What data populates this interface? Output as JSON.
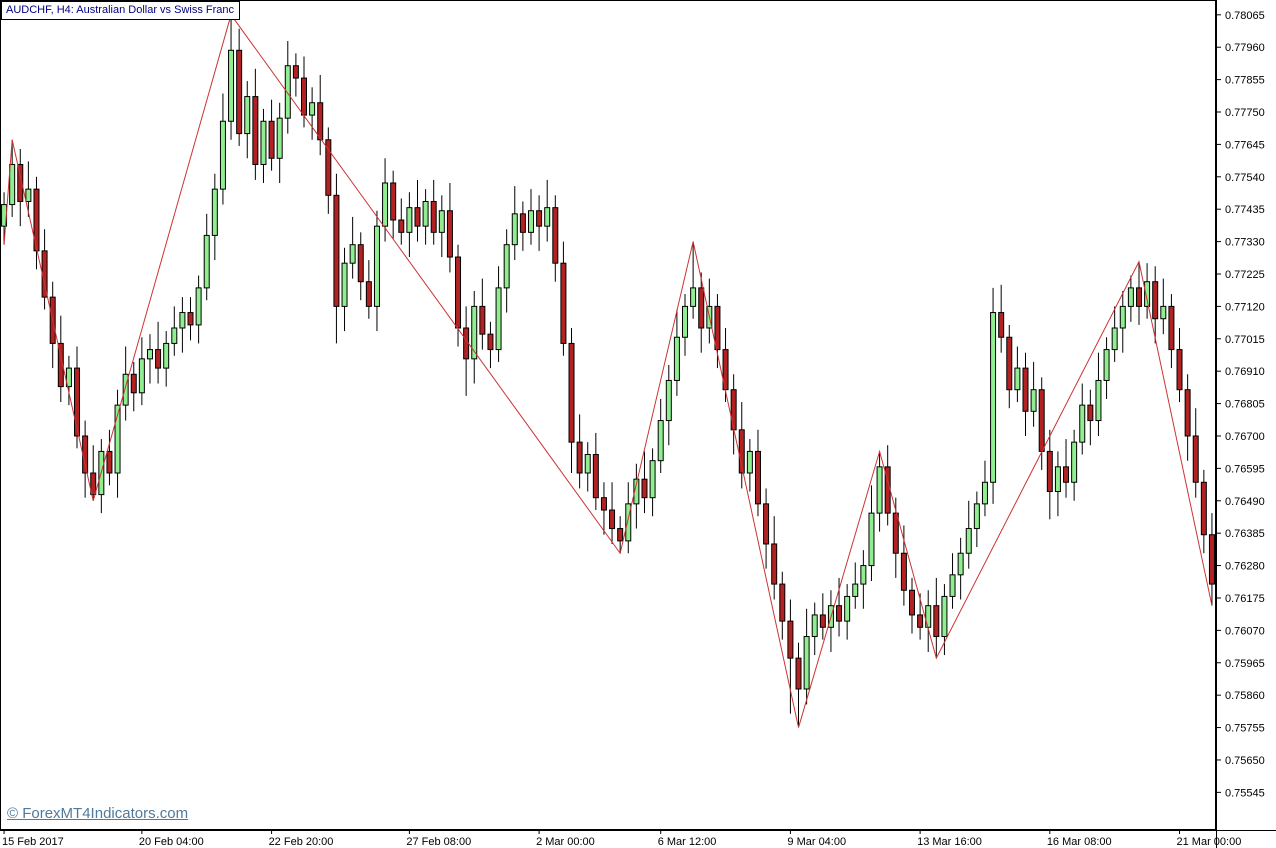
{
  "header": {
    "title": "AUDCHF, H4:  Australian Dollar vs Swiss Franc"
  },
  "watermark": "© ForexMT4Indicators.com",
  "colors": {
    "background": "#ffffff",
    "title_text": "#000080",
    "watermark_text": "#4f7a9b",
    "axis_text": "#000000",
    "axis_line": "#000000",
    "up_fill": "#90EE90",
    "down_fill": "#B22222",
    "candle_border": "#000000",
    "wick": "#000000",
    "zigzag": "#CC3333"
  },
  "chart_data": {
    "type": "candlestick",
    "symbol": "AUDCHF",
    "timeframe": "H4",
    "title": "AUDCHF, H4: Australian Dollar vs Swiss Franc",
    "indicator": "ZigZag",
    "grid": false,
    "legend": null,
    "price_range": [
      0.75423,
      0.78113
    ],
    "y_axis_labels": [
      0.78065,
      0.7796,
      0.77855,
      0.7775,
      0.77645,
      0.7754,
      0.77435,
      0.7733,
      0.77225,
      0.7712,
      0.77015,
      0.7691,
      0.76805,
      0.767,
      0.76595,
      0.7649,
      0.76385,
      0.7628,
      0.76175,
      0.7607,
      0.75965,
      0.7586,
      0.75755,
      0.7565,
      0.75545
    ],
    "x_axis_labels": [
      {
        "label": "15 Feb 2017",
        "index": 0
      },
      {
        "label": "20 Feb 04:00",
        "index": 17
      },
      {
        "label": "22 Feb 20:00",
        "index": 33
      },
      {
        "label": "27 Feb 08:00",
        "index": 50
      },
      {
        "label": "2 Mar 00:00",
        "index": 66
      },
      {
        "label": "6 Mar 12:00",
        "index": 81
      },
      {
        "label": "9 Mar 04:00",
        "index": 97
      },
      {
        "label": "13 Mar 16:00",
        "index": 113
      },
      {
        "label": "16 Mar 08:00",
        "index": 129
      },
      {
        "label": "21 Mar 00:00",
        "index": 145
      }
    ],
    "zigzag_points": [
      [
        0,
        0.7732
      ],
      [
        1,
        0.7766
      ],
      [
        11,
        0.7649
      ],
      [
        28,
        0.78065
      ],
      [
        76,
        0.7632
      ],
      [
        85,
        0.7733
      ],
      [
        98,
        0.75755
      ],
      [
        108,
        0.7665
      ],
      [
        115,
        0.7598
      ],
      [
        140,
        0.77265
      ],
      [
        149,
        0.7615
      ]
    ],
    "candles": [
      [
        0.7738,
        0.7749,
        0.7732,
        0.7745
      ],
      [
        0.7745,
        0.7766,
        0.7741,
        0.7758
      ],
      [
        0.7758,
        0.7763,
        0.7738,
        0.7746
      ],
      [
        0.7746,
        0.7759,
        0.7741,
        0.775
      ],
      [
        0.775,
        0.7754,
        0.7724,
        0.773
      ],
      [
        0.773,
        0.7737,
        0.7711,
        0.7715
      ],
      [
        0.7715,
        0.772,
        0.7692,
        0.77
      ],
      [
        0.77,
        0.7709,
        0.7681,
        0.7686
      ],
      [
        0.7686,
        0.7696,
        0.768,
        0.7692
      ],
      [
        0.7692,
        0.7699,
        0.7666,
        0.767
      ],
      [
        0.767,
        0.7675,
        0.765,
        0.7658
      ],
      [
        0.7658,
        0.7667,
        0.7649,
        0.7651
      ],
      [
        0.7651,
        0.7669,
        0.7645,
        0.7665
      ],
      [
        0.7665,
        0.7672,
        0.7654,
        0.7658
      ],
      [
        0.7658,
        0.7685,
        0.765,
        0.768
      ],
      [
        0.768,
        0.7699,
        0.7675,
        0.769
      ],
      [
        0.769,
        0.7694,
        0.7678,
        0.7684
      ],
      [
        0.7684,
        0.7702,
        0.768,
        0.7695
      ],
      [
        0.7695,
        0.7703,
        0.7687,
        0.7698
      ],
      [
        0.7698,
        0.7707,
        0.7687,
        0.7692
      ],
      [
        0.7692,
        0.7704,
        0.7686,
        0.77
      ],
      [
        0.77,
        0.7712,
        0.7696,
        0.7705
      ],
      [
        0.7705,
        0.7715,
        0.7697,
        0.771
      ],
      [
        0.771,
        0.7715,
        0.7701,
        0.7706
      ],
      [
        0.7706,
        0.7722,
        0.77,
        0.7718
      ],
      [
        0.7718,
        0.7742,
        0.7714,
        0.7735
      ],
      [
        0.7735,
        0.7755,
        0.7727,
        0.775
      ],
      [
        0.775,
        0.7781,
        0.7745,
        0.7772
      ],
      [
        0.7772,
        0.78065,
        0.7766,
        0.7795
      ],
      [
        0.7795,
        0.7802,
        0.7764,
        0.7768
      ],
      [
        0.7768,
        0.7785,
        0.776,
        0.778
      ],
      [
        0.778,
        0.7789,
        0.7753,
        0.7758
      ],
      [
        0.7758,
        0.7776,
        0.7752,
        0.7772
      ],
      [
        0.7772,
        0.7779,
        0.7756,
        0.776
      ],
      [
        0.776,
        0.7778,
        0.7752,
        0.7773
      ],
      [
        0.7773,
        0.7798,
        0.7768,
        0.779
      ],
      [
        0.779,
        0.7794,
        0.778,
        0.7786
      ],
      [
        0.7786,
        0.7793,
        0.777,
        0.7774
      ],
      [
        0.7774,
        0.7783,
        0.7766,
        0.7778
      ],
      [
        0.7778,
        0.7787,
        0.7761,
        0.7766
      ],
      [
        0.7766,
        0.777,
        0.7742,
        0.7748
      ],
      [
        0.7748,
        0.7755,
        0.77,
        0.7712
      ],
      [
        0.7712,
        0.7731,
        0.7704,
        0.7726
      ],
      [
        0.7726,
        0.7741,
        0.7721,
        0.7732
      ],
      [
        0.7732,
        0.7736,
        0.7714,
        0.772
      ],
      [
        0.772,
        0.7727,
        0.7708,
        0.7712
      ],
      [
        0.7712,
        0.7743,
        0.7704,
        0.7738
      ],
      [
        0.7738,
        0.776,
        0.7733,
        0.7752
      ],
      [
        0.7752,
        0.7756,
        0.7734,
        0.774
      ],
      [
        0.774,
        0.7747,
        0.7732,
        0.7736
      ],
      [
        0.7736,
        0.7749,
        0.7728,
        0.7744
      ],
      [
        0.7744,
        0.7753,
        0.7733,
        0.7738
      ],
      [
        0.7738,
        0.775,
        0.7732,
        0.7746
      ],
      [
        0.7746,
        0.7753,
        0.7732,
        0.7736
      ],
      [
        0.7736,
        0.7748,
        0.7728,
        0.7743
      ],
      [
        0.7743,
        0.7752,
        0.7723,
        0.7728
      ],
      [
        0.7728,
        0.7732,
        0.7699,
        0.7705
      ],
      [
        0.7705,
        0.7712,
        0.7683,
        0.7695
      ],
      [
        0.7695,
        0.7717,
        0.7687,
        0.7712
      ],
      [
        0.7712,
        0.7721,
        0.7698,
        0.7703
      ],
      [
        0.7703,
        0.7707,
        0.7692,
        0.7698
      ],
      [
        0.7698,
        0.7725,
        0.7694,
        0.7718
      ],
      [
        0.7718,
        0.7737,
        0.771,
        0.7732
      ],
      [
        0.7732,
        0.7751,
        0.7727,
        0.7742
      ],
      [
        0.7742,
        0.7746,
        0.773,
        0.7736
      ],
      [
        0.7736,
        0.775,
        0.7732,
        0.7743
      ],
      [
        0.7743,
        0.7748,
        0.773,
        0.7738
      ],
      [
        0.7738,
        0.7753,
        0.7733,
        0.7744
      ],
      [
        0.7744,
        0.7748,
        0.772,
        0.7726
      ],
      [
        0.7726,
        0.7733,
        0.7696,
        0.77
      ],
      [
        0.77,
        0.7705,
        0.7658,
        0.7668
      ],
      [
        0.7668,
        0.7677,
        0.7653,
        0.7658
      ],
      [
        0.7658,
        0.7668,
        0.7652,
        0.7664
      ],
      [
        0.7664,
        0.7671,
        0.7646,
        0.765
      ],
      [
        0.765,
        0.7655,
        0.7638,
        0.7646
      ],
      [
        0.7646,
        0.7655,
        0.7635,
        0.764
      ],
      [
        0.764,
        0.7644,
        0.7632,
        0.7636
      ],
      [
        0.7636,
        0.7655,
        0.7632,
        0.7648
      ],
      [
        0.7648,
        0.7661,
        0.764,
        0.7656
      ],
      [
        0.7656,
        0.7665,
        0.7645,
        0.765
      ],
      [
        0.765,
        0.7666,
        0.7644,
        0.7662
      ],
      [
        0.7662,
        0.7682,
        0.7658,
        0.7675
      ],
      [
        0.7675,
        0.7693,
        0.7667,
        0.7688
      ],
      [
        0.7688,
        0.7711,
        0.7683,
        0.7702
      ],
      [
        0.7702,
        0.7716,
        0.7696,
        0.7712
      ],
      [
        0.7712,
        0.7733,
        0.7708,
        0.7718
      ],
      [
        0.7718,
        0.7723,
        0.7697,
        0.7705
      ],
      [
        0.7705,
        0.7721,
        0.77,
        0.7712
      ],
      [
        0.7712,
        0.7716,
        0.7692,
        0.7698
      ],
      [
        0.7698,
        0.7705,
        0.7681,
        0.7685
      ],
      [
        0.7685,
        0.769,
        0.7664,
        0.7672
      ],
      [
        0.7672,
        0.7681,
        0.7653,
        0.7658
      ],
      [
        0.7658,
        0.7669,
        0.7652,
        0.7665
      ],
      [
        0.7665,
        0.7672,
        0.7644,
        0.7648
      ],
      [
        0.7648,
        0.7653,
        0.7627,
        0.7635
      ],
      [
        0.7635,
        0.7644,
        0.7617,
        0.7622
      ],
      [
        0.7622,
        0.7626,
        0.7604,
        0.761
      ],
      [
        0.761,
        0.7617,
        0.758,
        0.7598
      ],
      [
        0.7598,
        0.7603,
        0.75755,
        0.7588
      ],
      [
        0.7588,
        0.7614,
        0.7583,
        0.7605
      ],
      [
        0.7605,
        0.7616,
        0.7599,
        0.7612
      ],
      [
        0.7612,
        0.7619,
        0.7604,
        0.7608
      ],
      [
        0.7608,
        0.762,
        0.76,
        0.7615
      ],
      [
        0.7615,
        0.7624,
        0.7605,
        0.761
      ],
      [
        0.761,
        0.7622,
        0.7604,
        0.7618
      ],
      [
        0.7618,
        0.7629,
        0.7614,
        0.7622
      ],
      [
        0.7622,
        0.7633,
        0.7614,
        0.7628
      ],
      [
        0.7628,
        0.7654,
        0.7623,
        0.7645
      ],
      [
        0.7645,
        0.7665,
        0.7639,
        0.766
      ],
      [
        0.766,
        0.7667,
        0.7641,
        0.7645
      ],
      [
        0.7645,
        0.765,
        0.7624,
        0.7632
      ],
      [
        0.7632,
        0.7641,
        0.7615,
        0.762
      ],
      [
        0.762,
        0.7624,
        0.7606,
        0.7612
      ],
      [
        0.7612,
        0.7619,
        0.7604,
        0.7608
      ],
      [
        0.7608,
        0.762,
        0.76,
        0.7615
      ],
      [
        0.7615,
        0.7624,
        0.7598,
        0.7605
      ],
      [
        0.7605,
        0.7622,
        0.7599,
        0.7618
      ],
      [
        0.7618,
        0.7632,
        0.7614,
        0.7625
      ],
      [
        0.7625,
        0.7637,
        0.7617,
        0.7632
      ],
      [
        0.7632,
        0.7649,
        0.7627,
        0.764
      ],
      [
        0.764,
        0.7652,
        0.7634,
        0.7648
      ],
      [
        0.7648,
        0.7662,
        0.7644,
        0.7655
      ],
      [
        0.7655,
        0.7718,
        0.7648,
        0.771
      ],
      [
        0.771,
        0.7719,
        0.7697,
        0.7702
      ],
      [
        0.7702,
        0.7706,
        0.7679,
        0.7685
      ],
      [
        0.7685,
        0.7699,
        0.7681,
        0.7692
      ],
      [
        0.7692,
        0.7697,
        0.767,
        0.7678
      ],
      [
        0.7678,
        0.7694,
        0.7673,
        0.7685
      ],
      [
        0.7685,
        0.7689,
        0.7659,
        0.7665
      ],
      [
        0.7665,
        0.7672,
        0.7643,
        0.7652
      ],
      [
        0.7652,
        0.7665,
        0.7644,
        0.766
      ],
      [
        0.766,
        0.7669,
        0.765,
        0.7655
      ],
      [
        0.7655,
        0.7672,
        0.7649,
        0.7668
      ],
      [
        0.7668,
        0.7687,
        0.7664,
        0.768
      ],
      [
        0.768,
        0.7685,
        0.7667,
        0.7675
      ],
      [
        0.7675,
        0.7697,
        0.767,
        0.7688
      ],
      [
        0.7688,
        0.7702,
        0.7682,
        0.7698
      ],
      [
        0.7698,
        0.7712,
        0.7694,
        0.7705
      ],
      [
        0.7705,
        0.7717,
        0.7697,
        0.7712
      ],
      [
        0.7712,
        0.7722,
        0.7707,
        0.7718
      ],
      [
        0.7718,
        0.77265,
        0.7706,
        0.7712
      ],
      [
        0.7712,
        0.7726,
        0.7708,
        0.772
      ],
      [
        0.772,
        0.7725,
        0.77,
        0.7708
      ],
      [
        0.7708,
        0.7721,
        0.7703,
        0.7712
      ],
      [
        0.7712,
        0.7716,
        0.7692,
        0.7698
      ],
      [
        0.7698,
        0.7705,
        0.7681,
        0.7685
      ],
      [
        0.7685,
        0.769,
        0.7662,
        0.767
      ],
      [
        0.767,
        0.7679,
        0.765,
        0.7655
      ],
      [
        0.7655,
        0.7659,
        0.7632,
        0.7638
      ],
      [
        0.7638,
        0.7645,
        0.7615,
        0.7622
      ]
    ]
  }
}
